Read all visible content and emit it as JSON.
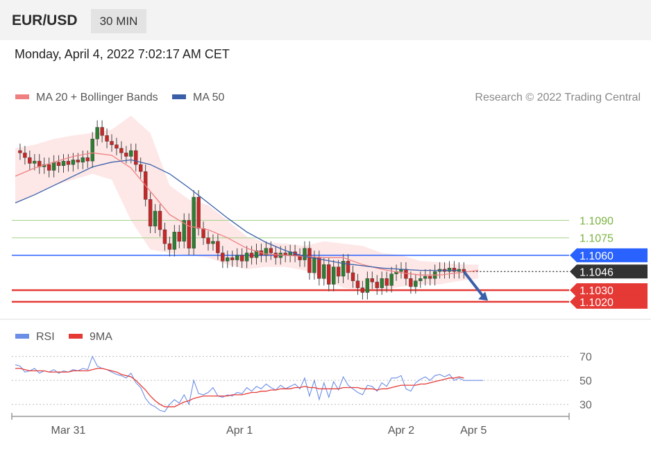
{
  "header": {
    "pair": "EUR/USD",
    "timeframe": "30 MIN"
  },
  "date": "Monday, April 4, 2022 7:02:17 AM CET",
  "colors": {
    "up": "#2e7d32",
    "down": "#c62828",
    "ma20": "#f08080",
    "band": "#fde3e3",
    "ma50": "#3a5fa8",
    "resistance": "#7cb342",
    "pivot": "#2962ff",
    "support": "#e53935",
    "last": "#333333",
    "rsi": "#6b8ee6",
    "rsi_ma": "#e53935"
  },
  "chart_data": [
    {
      "type": "candlestick",
      "legend": [
        {
          "label": "MA 20 + Bollinger Bands",
          "color": "#f08080"
        },
        {
          "label": "MA 50",
          "color": "#3a5fa8"
        }
      ],
      "copyright": "Research © 2022 Trading Central",
      "ylim": [
        1.1008,
        1.1184
      ],
      "x_range": [
        0,
        103
      ],
      "x_ticks": [
        {
          "x": 11,
          "label": "Mar 31"
        },
        {
          "x": 46.5,
          "label": "Apr 1"
        },
        {
          "x": 80,
          "label": "Apr 2"
        },
        {
          "x": 95,
          "label": "Apr 5"
        }
      ],
      "levels": [
        {
          "value": 1.109,
          "label": "1.1090",
          "kind": "resistance"
        },
        {
          "value": 1.1075,
          "label": "1.1075",
          "kind": "resistance"
        },
        {
          "value": 1.106,
          "label": "1.1060",
          "kind": "pivot"
        },
        {
          "value": 1.1046,
          "label": "1.1046",
          "kind": "last"
        },
        {
          "value": 1.103,
          "label": "1.1030",
          "kind": "support"
        },
        {
          "value": 1.102,
          "label": "1.1020",
          "kind": "support"
        }
      ],
      "projection": {
        "from": [
          93,
          1.1046
        ],
        "to": [
          98,
          1.1021
        ]
      },
      "candles": {
        "x_start": 0,
        "close": [
          1.115,
          1.1148,
          1.1144,
          1.1139,
          1.1141,
          1.1136,
          1.1138,
          1.1133,
          1.114,
          1.1137,
          1.1141,
          1.1138,
          1.1142,
          1.114,
          1.1144,
          1.1141,
          1.116,
          1.117,
          1.1163,
          1.1158,
          1.1155,
          1.1152,
          1.1148,
          1.1145,
          1.115,
          1.1138,
          1.1132,
          1.1108,
          1.1085,
          1.1098,
          1.1082,
          1.107,
          1.1065,
          1.108,
          1.1072,
          1.109,
          1.1066,
          1.111,
          1.1083,
          1.1075,
          1.107,
          1.1072,
          1.1062,
          1.1055,
          1.1058,
          1.1056,
          1.106,
          1.1055,
          1.1062,
          1.1058,
          1.1064,
          1.106,
          1.1066,
          1.1062,
          1.1058,
          1.1062,
          1.106,
          1.1063,
          1.106,
          1.1056,
          1.1066,
          1.1045,
          1.1058,
          1.104,
          1.1052,
          1.1035,
          1.105,
          1.1042,
          1.1055,
          1.1045,
          1.1038,
          1.1032,
          1.1028,
          1.104,
          1.1037,
          1.1032,
          1.104,
          1.1034,
          1.1044,
          1.1046,
          1.1048,
          1.104,
          1.1033,
          1.1038,
          1.104,
          1.1042,
          1.104,
          1.1046,
          1.1048,
          1.1046,
          1.1049,
          1.1046,
          1.1048,
          1.1046
        ]
      },
      "ma20": [
        1.1128,
        1.1135,
        1.114,
        1.1145,
        1.1148,
        1.1146,
        1.1135,
        1.1115,
        1.1095,
        1.1085,
        1.1082,
        1.1075,
        1.1066,
        1.1061,
        1.106,
        1.1059,
        1.1058,
        1.1058,
        1.1052,
        1.1048,
        1.1045,
        1.1043,
        1.1043,
        1.1045,
        1.1047
      ],
      "bb_upper": [
        1.1152,
        1.1155,
        1.116,
        1.1163,
        1.1165,
        1.1168,
        1.118,
        1.1165,
        1.112,
        1.1108,
        1.1103,
        1.109,
        1.1076,
        1.1071,
        1.107,
        1.1068,
        1.1072,
        1.107,
        1.1068,
        1.1062,
        1.106,
        1.1055,
        1.1054,
        1.1052,
        1.1052
      ],
      "bb_lower": [
        1.1105,
        1.1112,
        1.112,
        1.1125,
        1.113,
        1.1125,
        1.109,
        1.1065,
        1.1062,
        1.106,
        1.1058,
        1.1052,
        1.1048,
        1.105,
        1.105,
        1.1047,
        1.104,
        1.1032,
        1.103,
        1.103,
        1.1033,
        1.1035,
        1.1035,
        1.1038,
        1.104
      ],
      "ma50": [
        1.1105,
        1.1112,
        1.112,
        1.1128,
        1.1136,
        1.114,
        1.1142,
        1.1138,
        1.113,
        1.1118,
        1.1105,
        1.1092,
        1.108,
        1.1071,
        1.1064,
        1.1059,
        1.1056,
        1.1053,
        1.1051,
        1.1049,
        1.1048,
        1.1047,
        1.1047,
        1.1047
      ]
    },
    {
      "type": "line",
      "legend": [
        {
          "label": "RSI",
          "color": "#6b8ee6"
        },
        {
          "label": "9MA",
          "color": "#e53935"
        }
      ],
      "ylim": [
        20,
        75
      ],
      "y_ticks": [
        70,
        50,
        30
      ],
      "series": [
        {
          "name": "RSI",
          "x_start": 0,
          "values": [
            63,
            62,
            57,
            58,
            60,
            56,
            58,
            57,
            59,
            56,
            58,
            57,
            59,
            58,
            60,
            59,
            70,
            62,
            60,
            59,
            57,
            55,
            54,
            52,
            56,
            48,
            44,
            35,
            30,
            28,
            25,
            24,
            30,
            34,
            31,
            38,
            30,
            50,
            39,
            38,
            40,
            44,
            37,
            36,
            38,
            37,
            40,
            39,
            44,
            41,
            45,
            43,
            47,
            44,
            42,
            46,
            43,
            45,
            47,
            43,
            52,
            37,
            50,
            34,
            48,
            36,
            49,
            42,
            53,
            46,
            43,
            40,
            38,
            46,
            45,
            41,
            48,
            45,
            52,
            52,
            54,
            43,
            41,
            48,
            51,
            53,
            50,
            54,
            55,
            53,
            55,
            50,
            52,
            50,
            50,
            50,
            50,
            50
          ]
        },
        {
          "name": "9MA",
          "x_start": 0,
          "values": [
            60,
            60,
            59,
            58,
            58,
            58,
            58,
            57,
            57,
            57,
            57,
            57,
            58,
            58,
            58,
            58,
            59,
            60,
            60,
            59,
            58,
            57,
            55,
            54,
            53,
            50,
            46,
            42,
            37,
            33,
            30,
            28,
            28,
            28,
            30,
            32,
            33,
            35,
            36,
            37,
            37,
            37,
            37,
            37,
            37,
            38,
            38,
            38,
            39,
            40,
            40,
            41,
            41,
            42,
            42,
            43,
            43,
            43,
            44,
            44,
            45,
            44,
            44,
            43,
            43,
            43,
            43,
            43,
            44,
            44,
            44,
            44,
            43,
            43,
            43,
            42,
            43,
            43,
            44,
            45,
            46,
            46,
            46,
            46,
            47,
            47,
            48,
            49,
            50,
            51,
            52,
            52,
            53,
            52
          ]
        }
      ]
    }
  ]
}
